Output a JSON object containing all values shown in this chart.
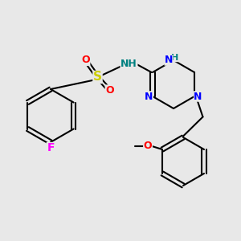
{
  "bg_color": "#e8e8e8",
  "bond_color": "#000000",
  "bond_width": 1.5,
  "font_size": 9,
  "atoms": {
    "F": "#ff00ff",
    "N": "#0000ff",
    "NH": "#008080",
    "S": "#cccc00",
    "O": "#ff0000",
    "C": "#000000"
  }
}
